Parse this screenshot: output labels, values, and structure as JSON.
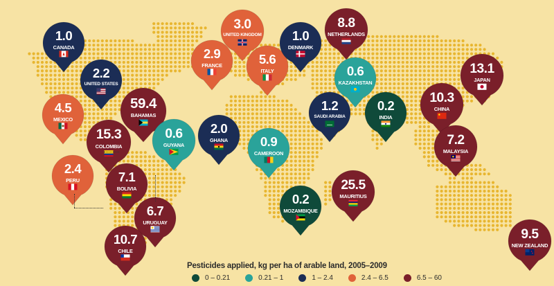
{
  "legend": {
    "title": "Pesticides applied, kg per ha of arable land, 2005–2009",
    "bins": [
      {
        "label": "0 – 0.21",
        "color": "#0f4a3a"
      },
      {
        "label": "0.21 – 1",
        "color": "#2aa39a"
      },
      {
        "label": "1 – 2.4",
        "color": "#1b2d55"
      },
      {
        "label": "2.4 – 6.5",
        "color": "#e0623a"
      },
      {
        "label": "6.5 – 60",
        "color": "#7a1f2a"
      }
    ]
  },
  "countries": [
    {
      "name": "CANADA",
      "value": "1.0",
      "color": "#1b2d55",
      "flag": "canada"
    },
    {
      "name": "UNITED STATES",
      "value": "2.2",
      "color": "#1b2d55",
      "flag": "usa"
    },
    {
      "name": "MEXICO",
      "value": "4.5",
      "color": "#e0623a",
      "flag": "mexico"
    },
    {
      "name": "BAHAMAS",
      "value": "59.4",
      "color": "#7a1f2a",
      "flag": "bahamas"
    },
    {
      "name": "COLOMBIA",
      "value": "15.3",
      "color": "#7a1f2a",
      "flag": "colombia"
    },
    {
      "name": "GUYANA",
      "value": "0.6",
      "color": "#2aa39a",
      "flag": "guyana"
    },
    {
      "name": "PERU",
      "value": "2.4",
      "color": "#e0623a",
      "flag": "peru"
    },
    {
      "name": "BOLIVIA",
      "value": "7.1",
      "color": "#7a1f2a",
      "flag": "bolivia"
    },
    {
      "name": "URUGUAY",
      "value": "6.7",
      "color": "#7a1f2a",
      "flag": "uruguay"
    },
    {
      "name": "CHILE",
      "value": "10.7",
      "color": "#7a1f2a",
      "flag": "chile"
    },
    {
      "name": "GHANA",
      "value": "2.0",
      "color": "#1b2d55",
      "flag": "ghana"
    },
    {
      "name": "CAMEROON",
      "value": "0.9",
      "color": "#2aa39a",
      "flag": "cameroon"
    },
    {
      "name": "FRANCE",
      "value": "2.9",
      "color": "#e0623a",
      "flag": "france"
    },
    {
      "name": "UNITED KINGDOM",
      "value": "3.0",
      "color": "#e0623a",
      "flag": "uk"
    },
    {
      "name": "ITALY",
      "value": "5.6",
      "color": "#e0623a",
      "flag": "italy"
    },
    {
      "name": "DENMARK",
      "value": "1.0",
      "color": "#1b2d55",
      "flag": "denmark"
    },
    {
      "name": "NETHERLANDS",
      "value": "8.8",
      "color": "#7a1f2a",
      "flag": "netherlands"
    },
    {
      "name": "KAZAKHSTAN",
      "value": "0.6",
      "color": "#2aa39a",
      "flag": "kazakhstan"
    },
    {
      "name": "SAUDI ARABIA",
      "value": "1.2",
      "color": "#1b2d55",
      "flag": "saudi"
    },
    {
      "name": "INDIA",
      "value": "0.2",
      "color": "#0f4a3a",
      "flag": "india"
    },
    {
      "name": "CHINA",
      "value": "10.3",
      "color": "#7a1f2a",
      "flag": "china"
    },
    {
      "name": "JAPAN",
      "value": "13.1",
      "color": "#7a1f2a",
      "flag": "japan"
    },
    {
      "name": "MALAYSIA",
      "value": "7.2",
      "color": "#7a1f2a",
      "flag": "malaysia"
    },
    {
      "name": "MAURITIUS",
      "value": "25.5",
      "color": "#7a1f2a",
      "flag": "mauritius"
    },
    {
      "name": "MOZAMBIQUE",
      "value": "0.2",
      "color": "#0f4a3a",
      "flag": "mozambique"
    },
    {
      "name": "NEW ZEALAND",
      "value": "9.5",
      "color": "#7a1f2a",
      "flag": "newzealand"
    }
  ]
}
